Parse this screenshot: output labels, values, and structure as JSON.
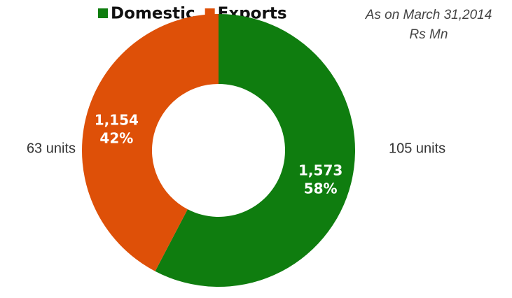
{
  "chart_data": {
    "type": "donut",
    "subtitle": [
      "As on  March 31,2014",
      "Rs Mn"
    ],
    "categories": [
      "Domestic",
      "Exports"
    ],
    "series": [
      {
        "name": "Domestic",
        "color": "#0f7d0f"
      },
      {
        "name": "Exports",
        "color": "#de5008"
      }
    ],
    "values": [
      1573,
      1154
    ],
    "value_labels": [
      "1,573",
      "1,154"
    ],
    "percentages": [
      58,
      42
    ],
    "percentage_labels": [
      "58%",
      "42%"
    ],
    "unit_labels": [
      "105 units",
      "63 units"
    ],
    "legend": "top"
  }
}
